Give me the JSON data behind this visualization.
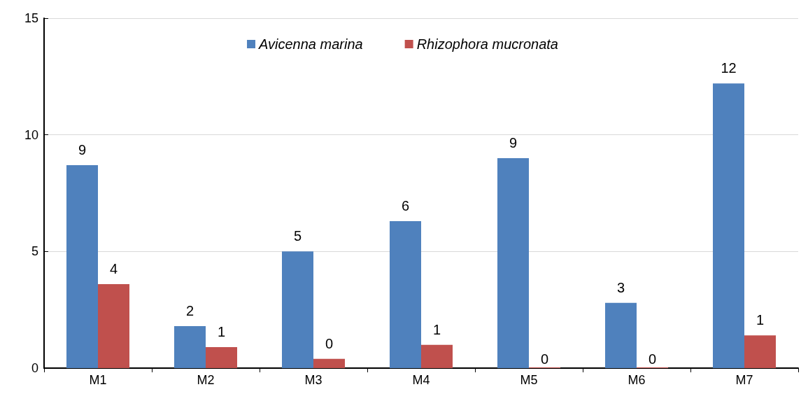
{
  "chart_data": {
    "type": "bar",
    "categories": [
      "M1",
      "M2",
      "M3",
      "M4",
      "M5",
      "M6",
      "M7"
    ],
    "series": [
      {
        "name": "Avicenna marina",
        "color": "#4f81bd",
        "values": [
          8.7,
          1.8,
          5.0,
          6.3,
          9.0,
          2.8,
          12.2
        ],
        "value_labels": [
          "9",
          "2",
          "5",
          "6",
          "9",
          "3",
          "12"
        ]
      },
      {
        "name": "Rhizophora mucronata",
        "color": "#c0504d",
        "values": [
          3.6,
          0.9,
          0.4,
          1.0,
          0,
          0,
          1.4
        ],
        "value_labels": [
          "4",
          "1",
          "0",
          "1",
          "0",
          "0",
          "1"
        ]
      }
    ],
    "ylim": [
      0,
      15
    ],
    "yticks": [
      0,
      5,
      10,
      15
    ],
    "grid": "y",
    "legend": "top"
  }
}
